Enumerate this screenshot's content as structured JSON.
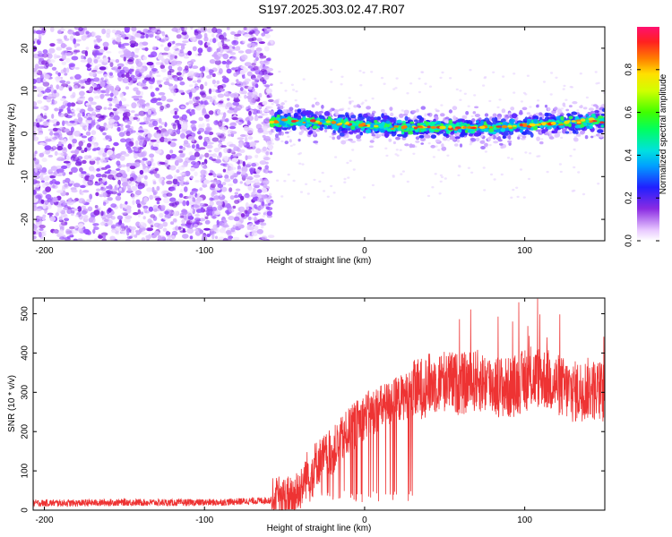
{
  "figure_title": "S197.2025.303.02.47.R07",
  "chart_data": [
    {
      "type": "heatmap",
      "title": "S197.2025.303.02.47.R07",
      "xlabel": "Height of straight line (km)",
      "ylabel": "Frequency (Hz)",
      "xlim": [
        -207,
        150
      ],
      "ylim": [
        -25,
        25
      ],
      "xticks": [
        -200,
        -100,
        0,
        100
      ],
      "yticks": [
        -20,
        -10,
        0,
        10,
        20
      ],
      "noise_region_x": [
        -207,
        -58
      ],
      "signal_region_x": [
        -58,
        150
      ],
      "ridge": {
        "x": [
          -58,
          -40,
          -20,
          0,
          20,
          40,
          60,
          80,
          100,
          120,
          140,
          150
        ],
        "frequency": [
          3,
          3,
          2.5,
          2,
          1.5,
          1.5,
          1.5,
          1.5,
          2,
          2.5,
          3,
          3
        ]
      },
      "colorbar": {
        "label": "Normalized spectral amplitude",
        "range": [
          0,
          1
        ],
        "ticks": [
          "0.0",
          "0.2",
          "0.4",
          "0.6",
          "0.8"
        ]
      }
    },
    {
      "type": "line",
      "xlabel": "Height of straight line (km)",
      "ylabel": "SNR (10 * v/v)",
      "xlim": [
        -207,
        150
      ],
      "ylim": [
        0,
        540
      ],
      "xticks": [
        -200,
        -100,
        0,
        100
      ],
      "yticks": [
        0,
        100,
        200,
        300,
        400,
        500
      ],
      "color": "#ee3333",
      "series": [
        {
          "name": "SNR",
          "x": [
            -207,
            -180,
            -150,
            -120,
            -90,
            -60,
            -45,
            -40,
            -35,
            -30,
            -20,
            -10,
            0,
            10,
            20,
            30,
            40,
            50,
            60,
            70,
            80,
            90,
            100,
            110,
            120,
            130,
            140,
            150
          ],
          "values": [
            18,
            18,
            20,
            19,
            20,
            25,
            30,
            60,
            100,
            120,
            150,
            200,
            240,
            260,
            280,
            300,
            320,
            330,
            320,
            330,
            320,
            310,
            330,
            340,
            320,
            300,
            310,
            300
          ]
        }
      ]
    }
  ]
}
